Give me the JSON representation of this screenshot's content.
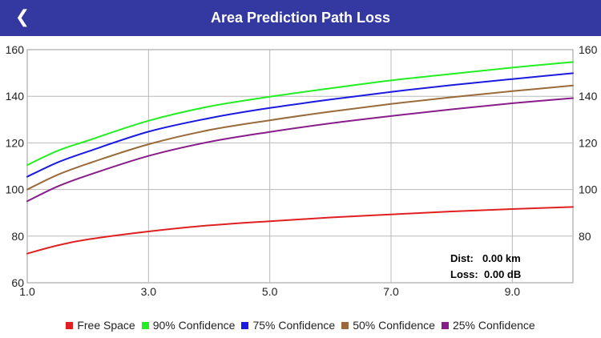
{
  "header": {
    "back_icon": "chevron-left-icon",
    "back_glyph": "❮",
    "title": "Area Prediction Path Loss"
  },
  "readout": {
    "dist_label": "Dist:",
    "dist_value": "0.00 km",
    "loss_label": "Loss:",
    "loss_value": "0.00 dB"
  },
  "chart_data": {
    "type": "line",
    "xlim": [
      1.0,
      10.0
    ],
    "ylim": [
      60,
      160
    ],
    "x_ticks": [
      1.0,
      3.0,
      5.0,
      7.0,
      9.0
    ],
    "x_tick_labels": [
      "1.0",
      "3.0",
      "5.0",
      "7.0",
      "9.0"
    ],
    "y_ticks": [
      60,
      80,
      100,
      120,
      140,
      160
    ],
    "y_tick_labels": [
      "60",
      "80",
      "100",
      "120",
      "140",
      "160"
    ],
    "y_tick_labels_right": [
      "80",
      "100",
      "120",
      "140",
      "160"
    ],
    "grid": true,
    "legend_position": "bottom",
    "x": [
      1.0,
      1.5,
      2.0,
      3.0,
      4.0,
      5.0,
      6.0,
      7.0,
      8.0,
      9.0,
      10.0
    ],
    "series": [
      {
        "name": "Free Space",
        "color": "#e02020",
        "values": [
          72.5,
          76.0,
          78.6,
          82.0,
          84.6,
          86.4,
          88.0,
          89.3,
          90.6,
          91.6,
          92.5
        ]
      },
      {
        "name": "90% Confidence",
        "color": "#22ee22",
        "values": [
          110.5,
          116.6,
          121.0,
          129.5,
          135.6,
          139.8,
          143.4,
          146.8,
          149.6,
          152.3,
          154.7
        ]
      },
      {
        "name": "75% Confidence",
        "color": "#1a1ae0",
        "values": [
          105.5,
          111.6,
          116.3,
          124.8,
          130.6,
          135.0,
          138.6,
          141.9,
          144.8,
          147.4,
          149.9
        ]
      },
      {
        "name": "50% Confidence",
        "color": "#9a6a3a",
        "values": [
          100.0,
          106.3,
          111.1,
          119.4,
          125.5,
          129.7,
          133.4,
          136.7,
          139.6,
          142.2,
          144.6
        ]
      },
      {
        "name": "25% Confidence",
        "color": "#881c8a",
        "values": [
          95.0,
          101.3,
          106.1,
          114.4,
          120.4,
          124.7,
          128.4,
          131.5,
          134.4,
          137.0,
          139.2
        ]
      }
    ]
  }
}
